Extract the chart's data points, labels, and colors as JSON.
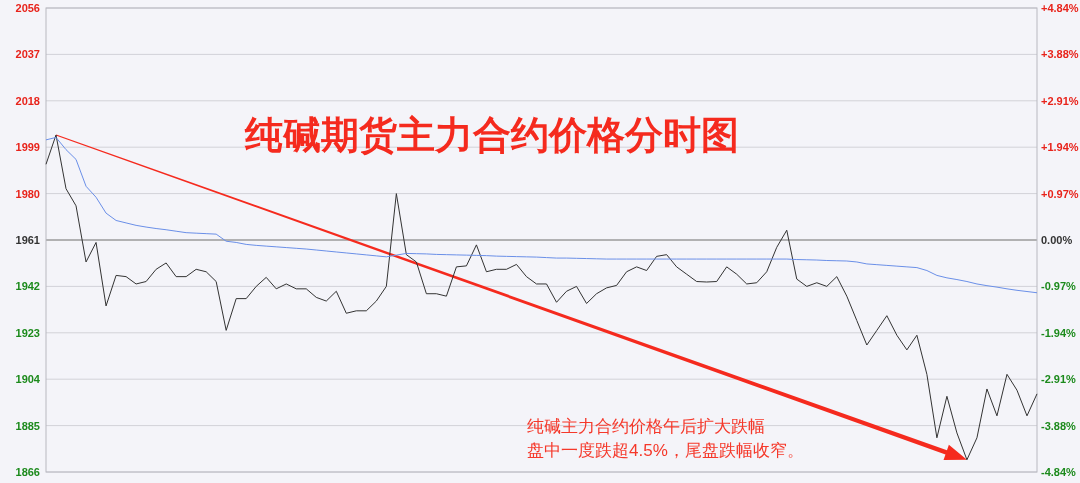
{
  "chart_data": {
    "type": "line",
    "title": "纯碱期货主力合约价格分时图",
    "annotations": [
      "纯碱主力合约价格午后扩大跌幅",
      "盘中一度跌超4.5%，尾盘跌幅收窄。"
    ],
    "categories": [
      null,
      null,
      null,
      null,
      null,
      null,
      null,
      null,
      null,
      null,
      null,
      null,
      null,
      null,
      null,
      null,
      null,
      null,
      null,
      null,
      null,
      null,
      null,
      null,
      null,
      null,
      null,
      null,
      null,
      null,
      null,
      null,
      null,
      null,
      null,
      null,
      null,
      null,
      null,
      null,
      null,
      null,
      null,
      null,
      null,
      null,
      null,
      null,
      null,
      null,
      null,
      null,
      null,
      null,
      null,
      null,
      null,
      null,
      null,
      null,
      null,
      null,
      null,
      null,
      null,
      null,
      null,
      null,
      null,
      null,
      null,
      null,
      null,
      null,
      null,
      null,
      null,
      null,
      null,
      null,
      null,
      null,
      null,
      null,
      null,
      null,
      null,
      null,
      null,
      null,
      null,
      null,
      null,
      null,
      null,
      null,
      null,
      null,
      null,
      null
    ],
    "series": [
      {
        "color": "#333333",
        "values": [
          1992,
          2004,
          1982,
          1975,
          1952,
          1960,
          1934,
          1946.5,
          1946,
          1943,
          1944,
          1949,
          1951.6,
          1946,
          1946,
          1949,
          1948,
          1944,
          1924,
          1937,
          1937,
          1942,
          1945.7,
          1941,
          1943,
          1941,
          1941,
          1937.5,
          1936,
          1940,
          1931,
          1932,
          1932,
          1936,
          1942,
          1980,
          1955,
          1952,
          1939,
          1939,
          1938,
          1950,
          1950.4,
          1959,
          1948,
          1949,
          1949,
          1951,
          1946,
          1943,
          1943,
          1935.5,
          1940,
          1942,
          1935,
          1939,
          1941.4,
          1942.4,
          1948,
          1950,
          1948.5,
          1954.3,
          1955,
          1950,
          1947,
          1944,
          1943.8,
          1944,
          1950,
          1947,
          1943,
          1943.5,
          1948,
          1958,
          1965,
          1945,
          1942,
          1943.5,
          1942,
          1946,
          1938,
          1928,
          1918,
          1924,
          1930,
          1922,
          1916,
          1922,
          1906,
          1880,
          1897,
          1882,
          1871,
          1880,
          1900,
          1889,
          1906,
          1899.5,
          1889,
          1898
        ]
      },
      {
        "color": "#6a8fe8",
        "values": [
          2002,
          2003,
          1998,
          1994,
          1983,
          1978.5,
          1972,
          1969,
          1968,
          1967,
          1966.3,
          1965.7,
          1965.2,
          1964.6,
          1964,
          1963.8,
          1963.6,
          1963.4,
          1960.5,
          1960,
          1959.2,
          1958.8,
          1958.5,
          1958.2,
          1957.9,
          1957.6,
          1957.3,
          1956.9,
          1956.5,
          1956.1,
          1955.7,
          1955.3,
          1954.9,
          1954.5,
          1954.1,
          1954.8,
          1955.5,
          1955.4,
          1955.3,
          1955.1,
          1955,
          1954.9,
          1954.8,
          1954.7,
          1954.6,
          1954.4,
          1954.3,
          1954.2,
          1954.1,
          1954,
          1953.8,
          1953.6,
          1953.6,
          1953.5,
          1953.4,
          1953.3,
          1953.2,
          1953.2,
          1953.2,
          1953.2,
          1953.2,
          1953.2,
          1953.2,
          1953.2,
          1953.2,
          1953.2,
          1953.2,
          1953.2,
          1953.2,
          1953.2,
          1953.2,
          1953.2,
          1953.2,
          1953.2,
          1953.2,
          1953,
          1952.9,
          1952.8,
          1952.6,
          1952.5,
          1952.4,
          1952,
          1951.2,
          1950.9,
          1950.6,
          1950.3,
          1950,
          1949.7,
          1948.5,
          1946.5,
          1945.5,
          1944.8,
          1944,
          1943,
          1942.3,
          1941.7,
          1941,
          1940.4,
          1939.9,
          1939.4
        ]
      }
    ],
    "ylim": [
      1866,
      2056
    ],
    "yticks": [
      1866,
      1885,
      1904,
      1923,
      1942,
      1961,
      1980,
      1999,
      2018,
      2037,
      2056
    ],
    "y2lim": [
      -4.84,
      4.84
    ],
    "y2ticks": [
      {
        "value": -4.84,
        "label": "-4.84%"
      },
      {
        "value": -3.88,
        "label": "-3.88%"
      },
      {
        "value": -2.91,
        "label": "-2.91%"
      },
      {
        "value": -1.94,
        "label": "-1.94%"
      },
      {
        "value": -0.97,
        "label": "-0.97%"
      },
      {
        "value": 0,
        "label": "0.00%"
      },
      {
        "value": 0.97,
        "label": "+0.97%"
      },
      {
        "value": 1.94,
        "label": "+1.94%"
      },
      {
        "value": 2.91,
        "label": "+2.91%"
      },
      {
        "value": 3.88,
        "label": "+3.88%"
      },
      {
        "value": 4.84,
        "label": "+4.84%"
      }
    ],
    "ref_lines": [
      {
        "axis": "y",
        "value": 1961,
        "color": "#a0a0a0"
      }
    ],
    "grid": "y"
  }
}
